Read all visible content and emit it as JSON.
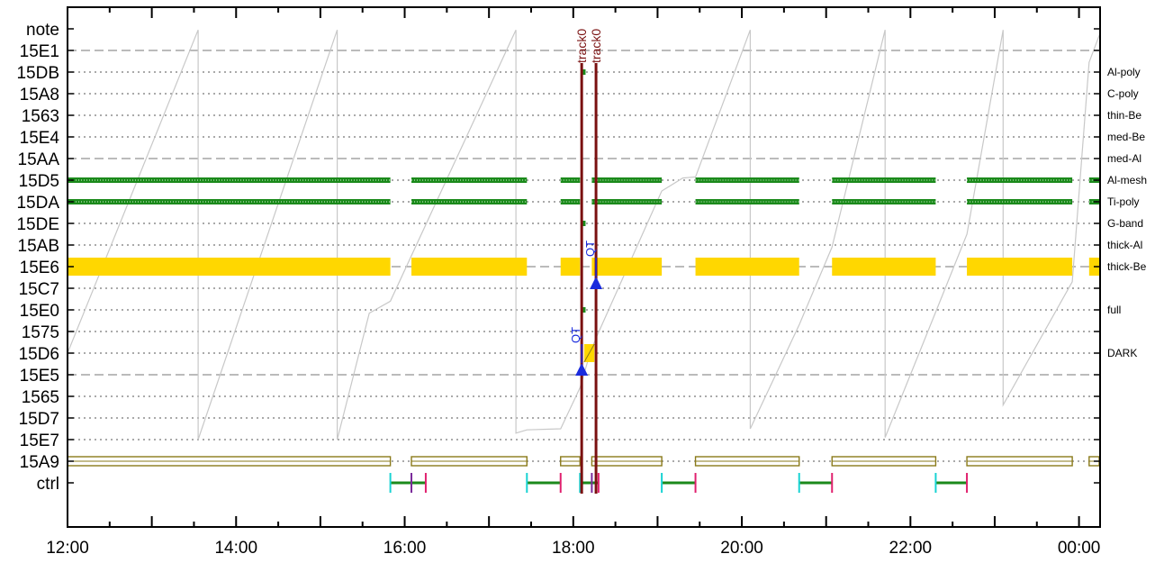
{
  "chart_data": {
    "type": "timeline",
    "x_axis": {
      "range_hours": [
        12.0,
        24.25
      ],
      "ticks": [
        {
          "hour": 12,
          "label": "12:00"
        },
        {
          "hour": 14,
          "label": "14:00"
        },
        {
          "hour": 16,
          "label": "16:00"
        },
        {
          "hour": 18,
          "label": "18:00"
        },
        {
          "hour": 20,
          "label": "20:00"
        },
        {
          "hour": 22,
          "label": "22:00"
        },
        {
          "hour": 24,
          "label": "00:00"
        }
      ]
    },
    "rows": [
      {
        "label": "note",
        "right_label": ""
      },
      {
        "label": "15E1",
        "right_label": "",
        "dashed": true
      },
      {
        "label": "15DB",
        "right_label": "Al-poly"
      },
      {
        "label": "15A8",
        "right_label": "C-poly"
      },
      {
        "label": "1563",
        "right_label": "thin-Be"
      },
      {
        "label": "15E4",
        "right_label": "med-Be"
      },
      {
        "label": "15AA",
        "right_label": "med-Al",
        "dashed": true
      },
      {
        "label": "15D5",
        "right_label": "Al-mesh"
      },
      {
        "label": "15DA",
        "right_label": "Ti-poly"
      },
      {
        "label": "15DE",
        "right_label": "G-band"
      },
      {
        "label": "15AB",
        "right_label": "thick-Al"
      },
      {
        "label": "15E6",
        "right_label": "thick-Be",
        "dashed": true
      },
      {
        "label": "15C7",
        "right_label": ""
      },
      {
        "label": "15E0",
        "right_label": "full"
      },
      {
        "label": "1575",
        "right_label": ""
      },
      {
        "label": "15D6",
        "right_label": "DARK"
      },
      {
        "label": "15E5",
        "right_label": "",
        "dashed": true
      },
      {
        "label": "1565",
        "right_label": ""
      },
      {
        "label": "15D7",
        "right_label": ""
      },
      {
        "label": "15E7",
        "right_label": ""
      },
      {
        "label": "15A9",
        "right_label": ""
      },
      {
        "label": "ctrl",
        "right_label": ""
      }
    ],
    "segments": [
      [
        12.0,
        15.83
      ],
      [
        16.08,
        17.45
      ],
      [
        17.85,
        18.08
      ],
      [
        18.22,
        19.05
      ],
      [
        19.45,
        20.68
      ],
      [
        21.07,
        22.3
      ],
      [
        22.67,
        23.92
      ],
      [
        24.12,
        24.25
      ]
    ],
    "green_rows": [
      "15D5",
      "15DA"
    ],
    "yellow_row": "15E6",
    "olive_row": "15A9",
    "small_marks": [
      {
        "row": "15DB",
        "hour": 18.13
      },
      {
        "row": "15DE",
        "hour": 18.13
      },
      {
        "row": "15E0",
        "hour": 18.13
      }
    ],
    "dark_block": {
      "row": "15D6",
      "start": 18.13,
      "end": 18.25
    },
    "tracks": [
      {
        "label": "track0",
        "hour": 18.1
      },
      {
        "label": "track0",
        "hour": 18.27
      }
    ],
    "qt_markers": [
      {
        "label": "QT",
        "hour": 18.1,
        "row": "15E5"
      },
      {
        "label": "QT",
        "hour": 18.27,
        "row": "15C7"
      }
    ],
    "ctrl_events": [
      {
        "start": 15.83,
        "end": 16.25,
        "mid": 16.08
      },
      {
        "start": 17.45,
        "end": 17.85
      },
      {
        "start": 18.08,
        "end": 18.3,
        "mid": 18.22
      },
      {
        "start": 19.05,
        "end": 19.45
      },
      {
        "start": 20.68,
        "end": 21.07
      },
      {
        "start": 22.3,
        "end": 22.67
      }
    ],
    "grey_trace": [
      [
        12.0,
        15.0
      ],
      [
        13.55,
        0.05
      ],
      [
        13.55,
        19.0
      ],
      [
        15.2,
        0.05
      ],
      [
        15.2,
        19.0
      ],
      [
        15.58,
        13.15
      ],
      [
        15.83,
        12.6
      ],
      [
        17.32,
        0.05
      ],
      [
        17.32,
        18.7
      ],
      [
        17.45,
        18.55
      ],
      [
        17.85,
        18.5
      ],
      [
        18.08,
        16.6
      ],
      [
        18.2,
        15.0
      ],
      [
        18.27,
        14.3
      ],
      [
        19.05,
        7.5
      ],
      [
        19.3,
        6.9
      ],
      [
        19.45,
        6.85
      ],
      [
        20.1,
        0.05
      ],
      [
        20.1,
        18.5
      ],
      [
        20.68,
        13.7
      ],
      [
        21.07,
        10.1
      ],
      [
        21.7,
        0.05
      ],
      [
        21.7,
        18.9
      ],
      [
        22.3,
        13.1
      ],
      [
        22.67,
        9.5
      ],
      [
        23.1,
        0.05
      ],
      [
        23.1,
        17.4
      ],
      [
        23.92,
        11.7
      ],
      [
        24.12,
        1.55
      ],
      [
        24.25,
        0.2
      ]
    ],
    "colors": {
      "green": "#1b8a1b",
      "yellow": "#ffd700",
      "olive": "#8a7a1a",
      "track": "#7a1010",
      "qt": "#1a2bdd",
      "trace": "#c8c8c8",
      "ctrl_start": "#19d3d3",
      "ctrl_end": "#e0206e",
      "ctrl_mid": "#7a2a9a"
    }
  }
}
